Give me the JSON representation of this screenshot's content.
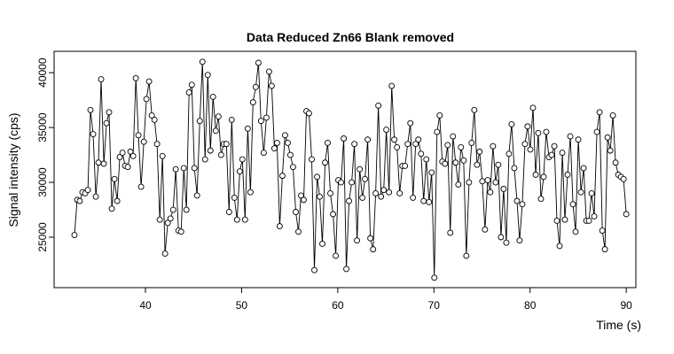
{
  "chart_data": {
    "type": "line",
    "title": "Data Reduced Zn66 Blank removed",
    "x_label": "Time (s)",
    "y_label": "Signal intensity (cps)",
    "xlim": [
      30.5,
      91
    ],
    "ylim": [
      20400,
      41950
    ],
    "xticks": [
      40,
      50,
      60,
      70,
      80,
      90
    ],
    "yticks": [
      25000,
      30000,
      35000,
      40000
    ],
    "color": "#000000",
    "x": [
      32.62,
      32.9,
      33.17,
      33.45,
      33.73,
      34.01,
      34.28,
      34.56,
      34.84,
      35.11,
      35.39,
      35.67,
      35.95,
      36.22,
      36.5,
      36.78,
      37.06,
      37.33,
      37.61,
      37.89,
      38.16,
      38.44,
      38.72,
      39.0,
      39.27,
      39.55,
      39.83,
      40.1,
      40.38,
      40.66,
      40.94,
      41.21,
      41.49,
      41.77,
      42.04,
      42.32,
      42.6,
      42.88,
      43.15,
      43.43,
      43.71,
      43.99,
      44.26,
      44.54,
      44.82,
      45.09,
      45.37,
      45.65,
      45.93,
      46.2,
      46.48,
      46.76,
      47.03,
      47.31,
      47.59,
      47.87,
      48.14,
      48.42,
      48.7,
      48.97,
      49.25,
      49.53,
      49.81,
      50.08,
      50.36,
      50.64,
      50.92,
      51.19,
      51.47,
      51.75,
      52.02,
      52.3,
      52.58,
      52.86,
      53.13,
      53.41,
      53.69,
      53.96,
      54.24,
      54.52,
      54.8,
      55.07,
      55.35,
      55.63,
      55.91,
      56.18,
      56.46,
      56.74,
      57.01,
      57.29,
      57.57,
      57.85,
      58.12,
      58.4,
      58.68,
      58.95,
      59.23,
      59.51,
      59.79,
      60.06,
      60.34,
      60.62,
      60.89,
      61.17,
      61.45,
      61.73,
      62.0,
      62.28,
      62.56,
      62.83,
      63.11,
      63.39,
      63.67,
      63.94,
      64.22,
      64.5,
      64.78,
      65.05,
      65.33,
      65.61,
      65.88,
      66.16,
      66.44,
      66.72,
      66.99,
      67.27,
      67.55,
      67.82,
      68.1,
      68.38,
      68.66,
      68.93,
      69.21,
      69.49,
      69.76,
      70.04,
      70.32,
      70.6,
      70.87,
      71.15,
      71.43,
      71.7,
      71.98,
      72.26,
      72.54,
      72.81,
      73.09,
      73.37,
      73.65,
      73.92,
      74.2,
      74.48,
      74.75,
      75.03,
      75.31,
      75.59,
      75.86,
      76.14,
      76.42,
      76.69,
      76.97,
      77.25,
      77.53,
      77.8,
      78.08,
      78.36,
      78.64,
      78.91,
      79.19,
      79.47,
      79.74,
      80.02,
      80.3,
      80.58,
      80.85,
      81.13,
      81.41,
      81.68,
      81.96,
      82.24,
      82.52,
      82.79,
      83.07,
      83.35,
      83.62,
      83.9,
      84.18,
      84.46,
      84.73,
      85.01,
      85.29,
      85.57,
      85.84,
      86.12,
      86.4,
      86.67,
      86.95,
      87.23,
      87.51,
      87.78,
      88.06,
      88.34,
      88.61,
      88.89,
      89.17,
      89.45,
      89.72,
      90.0
    ],
    "values": [
      25200,
      28400,
      28300,
      29100,
      29000,
      29300,
      36600,
      34400,
      28700,
      31800,
      39400,
      31700,
      35400,
      36400,
      27600,
      30300,
      28300,
      32300,
      32700,
      31500,
      31400,
      32800,
      32400,
      39500,
      34300,
      29600,
      33700,
      37600,
      39200,
      36100,
      35700,
      33500,
      26600,
      32400,
      23500,
      26300,
      26700,
      27500,
      31200,
      25600,
      25500,
      31300,
      27500,
      38200,
      38900,
      31300,
      28800,
      35600,
      41000,
      32100,
      39800,
      32900,
      37800,
      34700,
      36000,
      32500,
      33500,
      33500,
      27300,
      35700,
      28600,
      26600,
      31000,
      32100,
      26600,
      34900,
      29100,
      37300,
      38700,
      40900,
      35600,
      32700,
      35900,
      40100,
      38800,
      33100,
      33600,
      26000,
      30600,
      34300,
      33600,
      32500,
      31400,
      27300,
      25500,
      28800,
      28400,
      36500,
      36300,
      32100,
      22000,
      30500,
      28700,
      24400,
      31800,
      33600,
      29000,
      27100,
      23300,
      30200,
      30000,
      34000,
      22100,
      28300,
      30000,
      33500,
      24700,
      31200,
      28600,
      30300,
      33900,
      24900,
      23900,
      29000,
      37000,
      28700,
      29300,
      34800,
      29100,
      38800,
      33900,
      33200,
      29000,
      31500,
      31500,
      33500,
      35400,
      28600,
      33500,
      33900,
      32600,
      28300,
      32100,
      28200,
      30900,
      21300,
      34600,
      36100,
      31900,
      31700,
      33400,
      25400,
      34200,
      31800,
      29800,
      33200,
      32000,
      23300,
      30000,
      33600,
      36600,
      31600,
      32800,
      30100,
      25700,
      30200,
      29100,
      33300,
      30000,
      31600,
      25000,
      29400,
      24500,
      32600,
      35300,
      31300,
      28300,
      24700,
      28000,
      33500,
      35100,
      33000,
      36800,
      30700,
      34500,
      28500,
      30500,
      34600,
      32300,
      32500,
      33300,
      26500,
      24200,
      32700,
      26600,
      30700,
      34200,
      28000,
      25500,
      33900,
      29100,
      31300,
      26500,
      26500,
      29000,
      26900,
      34600,
      36400,
      25600,
      23900,
      34100,
      32900,
      36100,
      31800,
      30700,
      30500,
      30300,
      27100
    ]
  }
}
